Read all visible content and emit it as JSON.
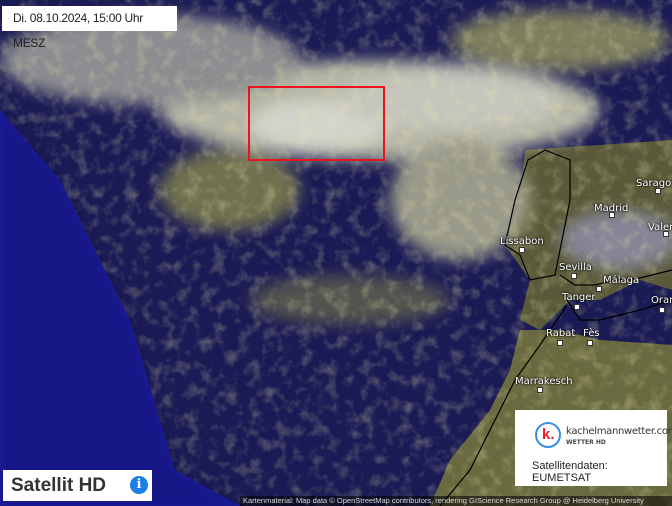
{
  "timestamp": "Di. 08.10.2024, 15:00 Uhr MESZ",
  "product": {
    "label": "Satellit HD",
    "info_icon": "info-icon"
  },
  "logo": {
    "brand": "kachelmannwetter.com",
    "subtitle": "WETTER HD",
    "letter": "k."
  },
  "source": "Satellitendaten: EUMETSAT",
  "attribution": "Kartenmaterial: Map data © OpenStreetMap contributors, rendering GIScience Research Group @ Heidelberg University",
  "cities": [
    {
      "name": "Saragossa"
    },
    {
      "name": "Madrid"
    },
    {
      "name": "Valencia"
    },
    {
      "name": "Lissabon"
    },
    {
      "name": "Sevilla"
    },
    {
      "name": "Málaga"
    },
    {
      "name": "Tanger"
    },
    {
      "name": "Oran"
    },
    {
      "name": "Rabat"
    },
    {
      "name": "Fès"
    },
    {
      "name": "Marrakesch"
    }
  ],
  "colors": {
    "highlight": "#e8141e",
    "sea": "#16164a",
    "no_data": "#1c1ca0",
    "cloud": "#d8d8a0",
    "accent": "#1a7fe6"
  }
}
